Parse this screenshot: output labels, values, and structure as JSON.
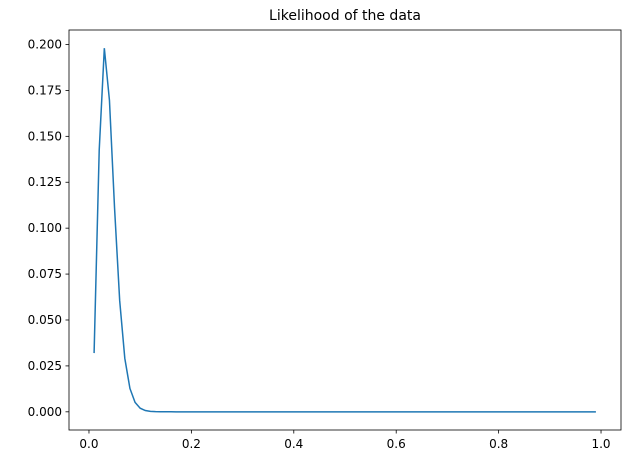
{
  "chart_data": {
    "type": "line",
    "title": "Likelihood of the data",
    "x": [
      0.01,
      0.02,
      0.03,
      0.04,
      0.05,
      0.06,
      0.07,
      0.08,
      0.09,
      0.1,
      0.11,
      0.12,
      0.13,
      0.14,
      0.15,
      0.16,
      0.17,
      0.18,
      0.19,
      0.2,
      0.21,
      0.22,
      0.23,
      0.24,
      0.25,
      0.26,
      0.27,
      0.28,
      0.29,
      0.3,
      0.31,
      0.32,
      0.33,
      0.34,
      0.35,
      0.36,
      0.37,
      0.38,
      0.39,
      0.4,
      0.41,
      0.42,
      0.43,
      0.44,
      0.45,
      0.46,
      0.47,
      0.48,
      0.49,
      0.5,
      0.51,
      0.52,
      0.53,
      0.54,
      0.55,
      0.56,
      0.57,
      0.58,
      0.59,
      0.6,
      0.61,
      0.62,
      0.63,
      0.64,
      0.65,
      0.66,
      0.67,
      0.68,
      0.69,
      0.7,
      0.71,
      0.72,
      0.73,
      0.74,
      0.75,
      0.76,
      0.77,
      0.78,
      0.79,
      0.8,
      0.81,
      0.82,
      0.83,
      0.84,
      0.85,
      0.86,
      0.87,
      0.88,
      0.89,
      0.9,
      0.91,
      0.92,
      0.93,
      0.94,
      0.95,
      0.96,
      0.97,
      0.98,
      0.99
    ],
    "series": [
      {
        "color": "#1f77b4",
        "values": [
          0.032,
          0.1425,
          0.198,
          0.1696,
          0.1108,
          0.0605,
          0.0291,
          0.0127,
          0.00514,
          0.00195,
          0.000697,
          0.000238,
          7.8e-05,
          2.4e-05,
          7e-06,
          2e-06,
          0,
          0,
          0,
          0,
          0,
          0,
          0,
          0,
          0,
          0,
          0,
          0,
          0,
          0,
          0,
          0,
          0,
          0,
          0,
          0,
          0,
          0,
          0,
          0,
          0,
          0,
          0,
          0,
          0,
          0,
          0,
          0,
          0,
          0,
          0,
          0,
          0,
          0,
          0,
          0,
          0,
          0,
          0,
          0,
          0,
          0,
          0,
          0,
          0,
          0,
          0,
          0,
          0,
          0,
          0,
          0,
          0,
          0,
          0,
          0,
          0,
          0,
          0,
          0,
          0,
          0,
          0,
          0,
          0,
          0,
          0,
          0,
          0,
          0,
          0,
          0,
          0,
          0,
          0,
          0,
          0,
          0,
          0
        ]
      }
    ],
    "xlim": [
      -0.039,
      1.039
    ],
    "xticks": [
      {
        "value": 0,
        "label": "0.0"
      },
      0.2,
      0.4,
      0.6,
      0.8,
      {
        "value": 1,
        "label": "1.0"
      }
    ],
    "ylim": [
      -0.0099,
      0.2079
    ],
    "yticks": [
      {
        "value": 0,
        "label": "0.000"
      },
      {
        "value": 0.025,
        "label": "0.025"
      },
      {
        "value": 0.05,
        "label": "0.050"
      },
      {
        "value": 0.075,
        "label": "0.075"
      },
      {
        "value": 0.1,
        "label": "0.100"
      },
      {
        "value": 0.125,
        "label": "0.125"
      },
      {
        "value": 0.15,
        "label": "0.150"
      },
      {
        "value": 0.175,
        "label": "0.175"
      },
      {
        "value": 0.2,
        "label": "0.200"
      }
    ]
  }
}
